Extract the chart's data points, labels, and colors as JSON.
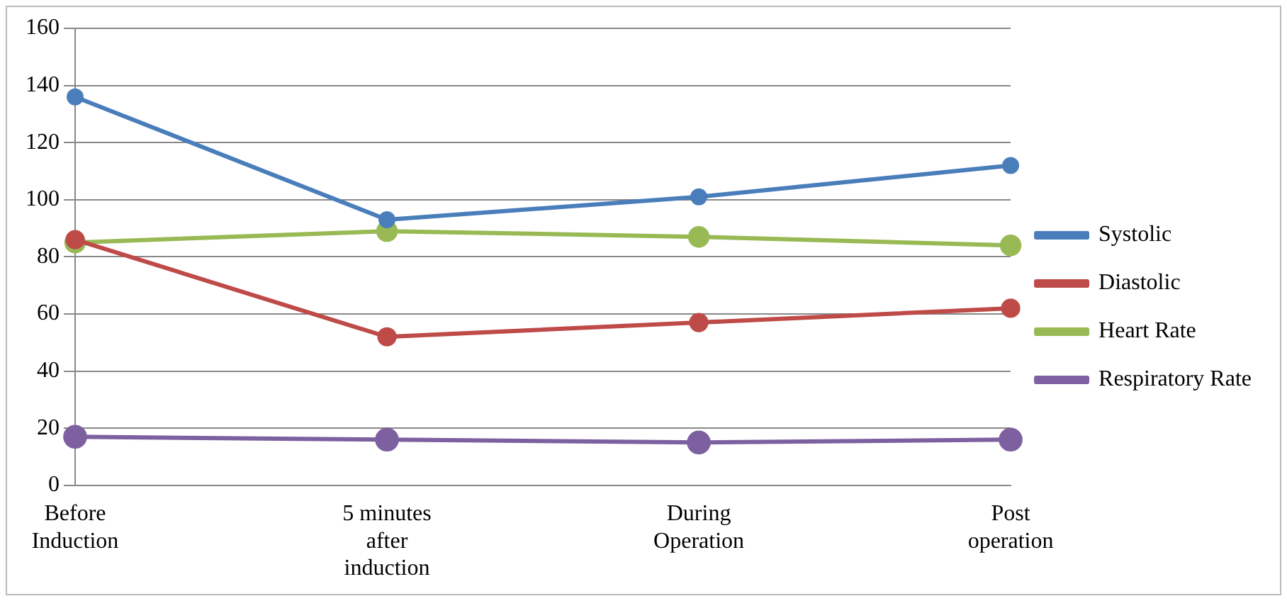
{
  "chart_data": {
    "type": "line",
    "categories": [
      "Before Induction",
      "5 minutes after induction",
      "During Operation",
      "Post operation"
    ],
    "series": [
      {
        "name": "Systolic",
        "color": "#4a7ebb",
        "values": [
          136,
          93,
          101,
          112
        ]
      },
      {
        "name": "Diastolic",
        "color": "#be4b48",
        "values": [
          86,
          52,
          57,
          62
        ]
      },
      {
        "name": "Heart Rate",
        "color": "#98b954",
        "values": [
          85,
          89,
          87,
          84
        ]
      },
      {
        "name": "Respiratory Rate",
        "color": "#7d60a0",
        "values": [
          17,
          16,
          15,
          16
        ]
      }
    ],
    "ylim": [
      0,
      160
    ],
    "yticks": [
      0,
      20,
      40,
      60,
      80,
      100,
      120,
      140,
      160
    ],
    "grid": "y",
    "legend": "right",
    "marker": "circle",
    "line_style": "solid"
  }
}
